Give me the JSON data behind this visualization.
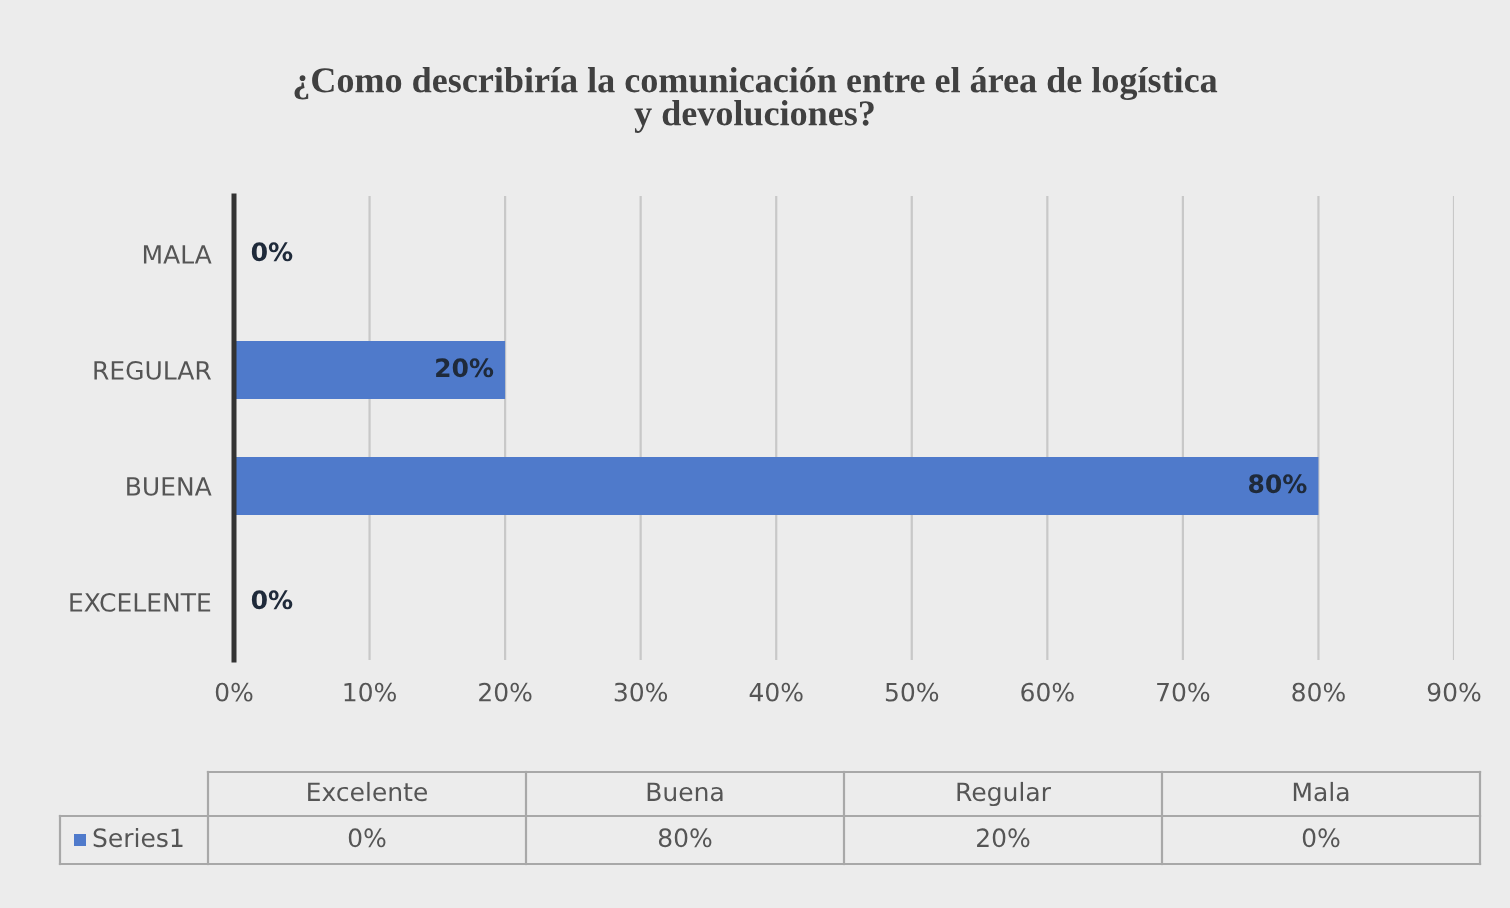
{
  "chart_data": {
    "type": "bar",
    "orientation": "horizontal",
    "title": "¿Como describiría la comunicación entre el área de logística\ny devoluciones?",
    "categories": [
      "MALA",
      "REGULAR",
      "BUENA",
      "EXCELENTE"
    ],
    "series": [
      {
        "name": "Series1",
        "color": "#4f7acb",
        "values": [
          0,
          20,
          80,
          0
        ],
        "value_labels": [
          "0%",
          "20%",
          "80%",
          "0%"
        ]
      }
    ],
    "xlim": [
      0,
      90
    ],
    "xticks": [
      {
        "value": 0,
        "label": "0%"
      },
      {
        "value": 10,
        "label": "10%"
      },
      {
        "value": 20,
        "label": "20%"
      },
      {
        "value": 30,
        "label": "30%"
      },
      {
        "value": 40,
        "label": "40%"
      },
      {
        "value": 50,
        "label": "50%"
      },
      {
        "value": 60,
        "label": "60%"
      },
      {
        "value": 70,
        "label": "70%"
      },
      {
        "value": 80,
        "label": "80%"
      },
      {
        "value": 90,
        "label": "90%"
      }
    ],
    "grid": "x",
    "legend": "bottom",
    "annotations": [
      "Excelente",
      "Buena",
      "Regular",
      "Mala"
    ]
  }
}
